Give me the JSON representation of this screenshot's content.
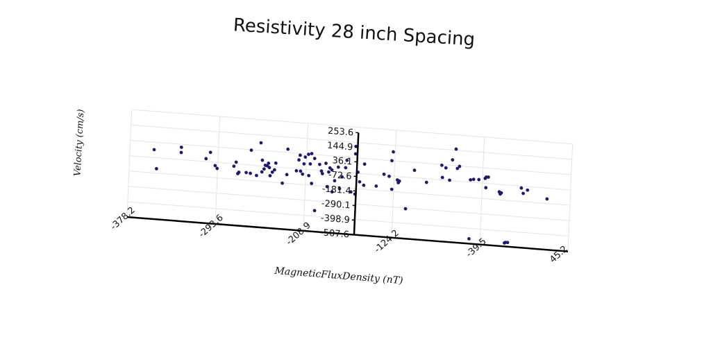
{
  "chart_data": {
    "type": "scatter",
    "title": "Resistivity 28 inch Spacing",
    "xlabel": "MagneticFluxDensity (nT)",
    "ylabel": "Velocity (cm/s)",
    "x_ticks": [
      "-378.2",
      "-293.6",
      "-208.9",
      "-124.2",
      "-39.5",
      "45.2"
    ],
    "y_ticks": [
      "253.6",
      "144.9",
      "36.1",
      "-72.6",
      "-181.4",
      "-290.1",
      "-398.9",
      "-507.6"
    ],
    "xlim": [
      -378.2,
      45.2
    ],
    "ylim": [
      -507.6,
      253.6
    ],
    "grid": true,
    "legend": "none",
    "marker_color": "#1a1a6e",
    "series": [
      {
        "points": [
          {
            "x": -355,
            "y": -17
          },
          {
            "x": -352,
            "y": -150
          },
          {
            "x": -329,
            "y": -22
          },
          {
            "x": -329,
            "y": 15
          },
          {
            "x": -305,
            "y": -52
          },
          {
            "x": -301,
            "y": -5
          },
          {
            "x": -296,
            "y": -96
          },
          {
            "x": -294,
            "y": -115
          },
          {
            "x": -278,
            "y": -90
          },
          {
            "x": -276,
            "y": -60
          },
          {
            "x": -274,
            "y": -140
          },
          {
            "x": -273,
            "y": -130
          },
          {
            "x": -266,
            "y": -128
          },
          {
            "x": -262,
            "y": -131
          },
          {
            "x": -262,
            "y": 33
          },
          {
            "x": -256,
            "y": -143
          },
          {
            "x": -253,
            "y": 90
          },
          {
            "x": -251,
            "y": -32
          },
          {
            "x": -251,
            "y": -115
          },
          {
            "x": -249,
            "y": -93
          },
          {
            "x": -248,
            "y": -66
          },
          {
            "x": -246,
            "y": -69
          },
          {
            "x": -245,
            "y": -50
          },
          {
            "x": -244,
            "y": -80
          },
          {
            "x": -243,
            "y": -137
          },
          {
            "x": -241,
            "y": -111
          },
          {
            "x": -239,
            "y": -93
          },
          {
            "x": -238,
            "y": -45
          },
          {
            "x": -231,
            "y": -183
          },
          {
            "x": -227,
            "y": 60
          },
          {
            "x": -227,
            "y": -120
          },
          {
            "x": -218,
            "y": -88
          },
          {
            "x": -216,
            "y": -10
          },
          {
            "x": -215,
            "y": 24
          },
          {
            "x": -214,
            "y": -88
          },
          {
            "x": -212,
            "y": -108
          },
          {
            "x": -211,
            "y": -35
          },
          {
            "x": -210,
            "y": 14
          },
          {
            "x": -207,
            "y": 35
          },
          {
            "x": -206,
            "y": -115
          },
          {
            "x": -205,
            "y": -32
          },
          {
            "x": -204,
            "y": 42
          },
          {
            "x": -203,
            "y": -169
          },
          {
            "x": -201,
            "y": 9
          },
          {
            "x": -199,
            "y": -359
          },
          {
            "x": -196,
            "y": -30
          },
          {
            "x": -194,
            "y": -76
          },
          {
            "x": -193,
            "y": -94
          },
          {
            "x": -190,
            "y": -19
          },
          {
            "x": -188,
            "y": -183
          },
          {
            "x": -187,
            "y": -79
          },
          {
            "x": -186,
            "y": -49
          },
          {
            "x": -184,
            "y": -62
          },
          {
            "x": -183,
            "y": -217
          },
          {
            "x": -181,
            "y": -137
          },
          {
            "x": -178,
            "y": -39
          },
          {
            "x": -176,
            "y": -190
          },
          {
            "x": -174,
            "y": -106
          },
          {
            "x": -171,
            "y": -39
          },
          {
            "x": -170,
            "y": 14
          },
          {
            "x": -165,
            "y": -207
          },
          {
            "x": -162,
            "y": 64
          },
          {
            "x": -162,
            "y": 117
          },
          {
            "x": -161,
            "y": -220
          },
          {
            "x": -159,
            "y": -64
          },
          {
            "x": -157,
            "y": -131
          },
          {
            "x": -153,
            "y": -3
          },
          {
            "x": -153,
            "y": -153
          },
          {
            "x": -141,
            "y": -152
          },
          {
            "x": -134,
            "y": -64
          },
          {
            "x": -129,
            "y": -76
          },
          {
            "x": -127,
            "y": 36
          },
          {
            "x": -126,
            "y": -166
          },
          {
            "x": -126,
            "y": 99
          },
          {
            "x": -121,
            "y": -97
          },
          {
            "x": -120,
            "y": -116
          },
          {
            "x": -119,
            "y": -104
          },
          {
            "x": -112,
            "y": -296
          },
          {
            "x": -105,
            "y": -19
          },
          {
            "x": -93,
            "y": -98
          },
          {
            "x": -79,
            "y": 31
          },
          {
            "x": -78,
            "y": -55
          },
          {
            "x": -75,
            "y": 15
          },
          {
            "x": -71,
            "y": -70
          },
          {
            "x": -69,
            "y": 75
          },
          {
            "x": -66,
            "y": 153
          },
          {
            "x": -64,
            "y": 17
          },
          {
            "x": -62,
            "y": 33
          },
          {
            "x": -51,
            "y": -56
          },
          {
            "x": -50,
            "y": -473
          },
          {
            "x": -48,
            "y": -51
          },
          {
            "x": -43,
            "y": -50
          },
          {
            "x": -37,
            "y": -38
          },
          {
            "x": -36,
            "y": -103
          },
          {
            "x": -36,
            "y": -28
          },
          {
            "x": -34,
            "y": -27
          },
          {
            "x": -23,
            "y": -125
          },
          {
            "x": -22,
            "y": -140
          },
          {
            "x": -21,
            "y": -131
          },
          {
            "x": -16,
            "y": -483
          },
          {
            "x": -15,
            "y": -479
          },
          {
            "x": -13,
            "y": -478
          },
          {
            "x": -2,
            "y": -86
          },
          {
            "x": 0,
            "y": -123
          },
          {
            "x": 4,
            "y": -97
          },
          {
            "x": 23,
            "y": -149
          }
        ]
      }
    ]
  }
}
